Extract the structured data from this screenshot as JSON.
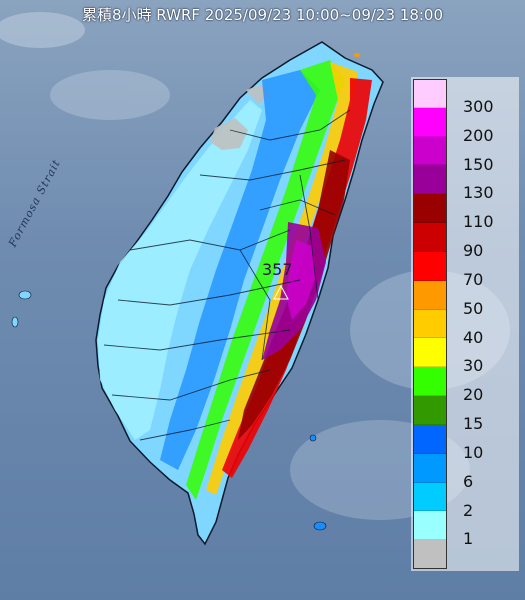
{
  "title": "累積8小時 RWRF 2025/09/23 10:00~09/23 18:00",
  "strait_label": "Formosa Strait",
  "max_label": "357",
  "legend": [
    {
      "label": "300",
      "color": "#ffccff"
    },
    {
      "label": "200",
      "color": "#ff00ff"
    },
    {
      "label": "150",
      "color": "#cc00cc"
    },
    {
      "label": "130",
      "color": "#990099"
    },
    {
      "label": "110",
      "color": "#990000"
    },
    {
      "label": "90",
      "color": "#cc0000"
    },
    {
      "label": "70",
      "color": "#ff0000"
    },
    {
      "label": "50",
      "color": "#ff9900"
    },
    {
      "label": "40",
      "color": "#ffcc00"
    },
    {
      "label": "30",
      "color": "#ffff00"
    },
    {
      "label": "20",
      "color": "#33ff00"
    },
    {
      "label": "15",
      "color": "#339900"
    },
    {
      "label": "10",
      "color": "#0066ff"
    },
    {
      "label": "6",
      "color": "#0099ff"
    },
    {
      "label": "2",
      "color": "#00ccff"
    },
    {
      "label": "1",
      "color": "#99ffff"
    },
    {
      "label": "",
      "color": "#c0c0c0"
    }
  ]
}
